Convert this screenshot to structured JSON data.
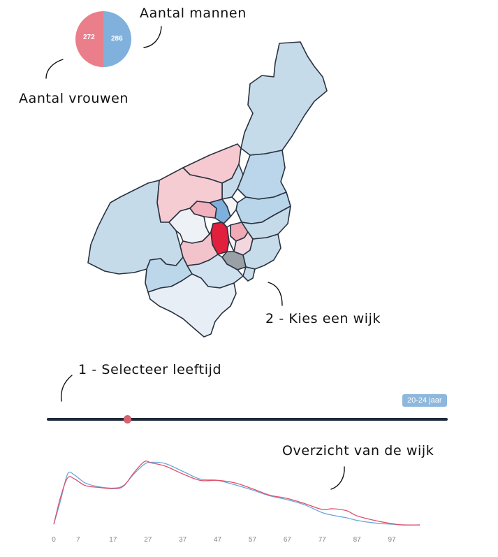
{
  "annotations": {
    "men_label": "Aantal mannen",
    "women_label": "Aantal vrouwen",
    "choose_district": "2 - Kies een wijk",
    "select_age": "1 - Selecteer leeftijd",
    "overview": "Overzicht van de wijk"
  },
  "pie": {
    "women": "272",
    "men": "286",
    "colors": {
      "women": "#ea7e8a",
      "men": "#7fb1dc"
    }
  },
  "slider": {
    "badge": "20-24 jaar",
    "selected_fraction": 0.2
  },
  "colors": {
    "men_line": "#6aa7db",
    "women_line": "#e0506a",
    "selected_district": "#e0203c"
  },
  "chart_data": {
    "type": "line",
    "x_ticks": [
      "0",
      "7",
      "17",
      "27",
      "37",
      "47",
      "57",
      "67",
      "77",
      "87",
      "97"
    ],
    "x": [
      0,
      2,
      4,
      6,
      9,
      13,
      17,
      20,
      23,
      26,
      28,
      32,
      37,
      42,
      47,
      52,
      57,
      62,
      67,
      72,
      77,
      80,
      84,
      87,
      92,
      97,
      100,
      105
    ],
    "series": [
      {
        "color": "#6aa7db",
        "values": [
          2,
          40,
          80,
          78,
          66,
          60,
          58,
          62,
          80,
          95,
          98,
          96,
          84,
          72,
          70,
          63,
          55,
          46,
          40,
          32,
          20,
          16,
          12,
          8,
          4,
          2,
          1,
          1
        ]
      },
      {
        "color": "#e0506a",
        "values": [
          2,
          45,
          74,
          72,
          62,
          59,
          57,
          61,
          82,
          99,
          97,
          92,
          80,
          70,
          70,
          66,
          57,
          47,
          42,
          34,
          25,
          26,
          23,
          15,
          8,
          3,
          1,
          1
        ]
      }
    ],
    "xlim": [
      0,
      108
    ],
    "ylim": [
      0,
      105
    ]
  }
}
